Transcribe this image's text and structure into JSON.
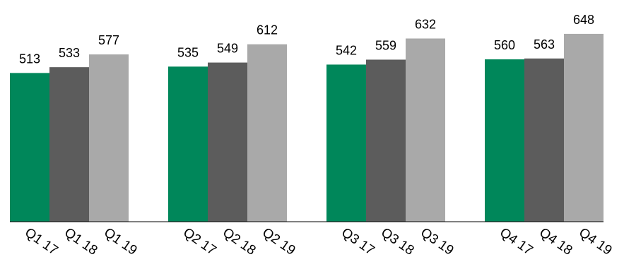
{
  "chart_data": {
    "type": "bar",
    "title": "",
    "xlabel": "",
    "ylabel": "",
    "grid": false,
    "legend": "none",
    "ylim": [
      0,
      680
    ],
    "categories": [
      "Q1 17",
      "Q1 18",
      "Q1 19",
      "Q2 17",
      "Q2 18",
      "Q2 19",
      "Q3 17",
      "Q3 18",
      "Q3 19",
      "Q4 17",
      "Q4 18",
      "Q4 19"
    ],
    "values": [
      513,
      533,
      577,
      535,
      549,
      612,
      542,
      559,
      632,
      560,
      563,
      648
    ],
    "value_labels": [
      "513",
      "533",
      "577",
      "535",
      "549",
      "612",
      "542",
      "559",
      "632",
      "560",
      "563",
      "648"
    ],
    "colors": [
      "#00875a",
      "#5c5c5c",
      "#a9a9a9"
    ]
  }
}
